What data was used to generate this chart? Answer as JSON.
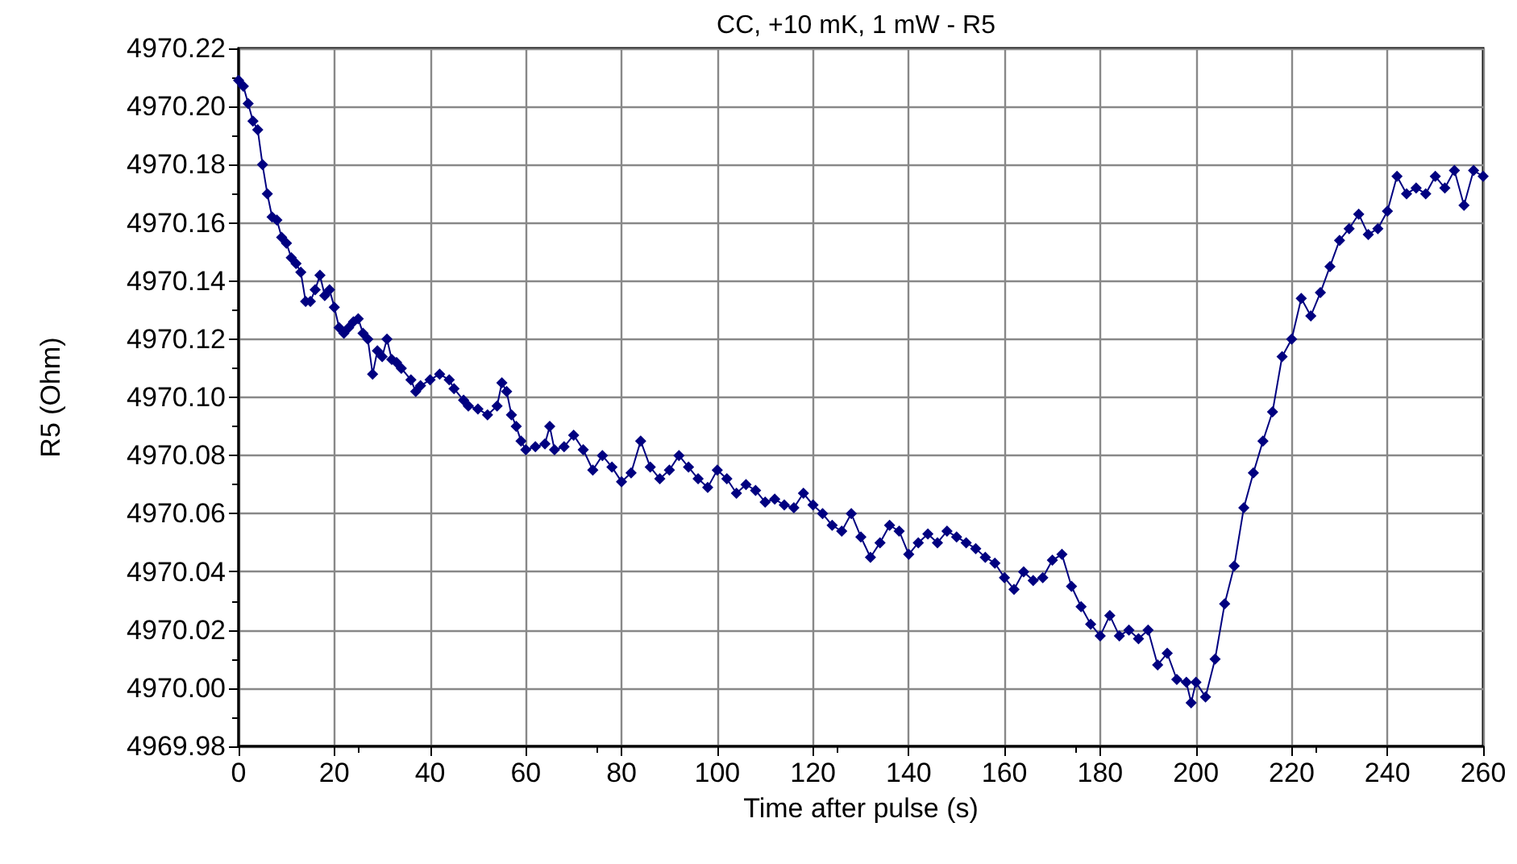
{
  "chart_data": {
    "type": "line",
    "title": "CC, +10 mK, 1 mW - R5",
    "xlabel": "Time after pulse (s)",
    "ylabel": "R5 (Ohm)",
    "x": [
      0,
      1,
      2,
      3,
      4,
      5,
      6,
      7,
      8,
      9,
      10,
      11,
      12,
      13,
      14,
      15,
      16,
      17,
      18,
      19,
      20,
      21,
      22,
      23,
      24,
      25,
      26,
      27,
      28,
      29,
      30,
      31,
      32,
      33,
      34,
      36,
      37,
      38,
      40,
      42,
      44,
      45,
      47,
      48,
      50,
      52,
      54,
      55,
      56,
      57,
      58,
      59,
      60,
      62,
      64,
      65,
      66,
      68,
      70,
      72,
      74,
      76,
      78,
      80,
      82,
      84,
      86,
      88,
      90,
      92,
      94,
      96,
      98,
      100,
      102,
      104,
      106,
      108,
      110,
      112,
      114,
      116,
      118,
      120,
      122,
      124,
      126,
      128,
      130,
      132,
      134,
      136,
      138,
      140,
      142,
      144,
      146,
      148,
      150,
      152,
      154,
      156,
      158,
      160,
      162,
      164,
      166,
      168,
      170,
      172,
      174,
      176,
      178,
      180,
      182,
      184,
      186,
      188,
      190,
      192,
      194,
      196,
      198,
      199,
      200,
      202,
      204,
      206,
      208,
      210,
      212,
      214,
      216,
      218,
      220,
      222,
      224,
      226,
      228,
      230,
      232,
      234,
      236,
      238,
      240,
      242,
      244,
      246,
      248,
      250,
      252,
      254,
      256,
      258,
      260
    ],
    "series": [
      {
        "color": "#000080",
        "values": [
          4970.209,
          4970.207,
          4970.201,
          4970.195,
          4970.192,
          4970.18,
          4970.17,
          4970.162,
          4970.161,
          4970.155,
          4970.153,
          4970.148,
          4970.146,
          4970.143,
          4970.133,
          4970.133,
          4970.137,
          4970.142,
          4970.135,
          4970.137,
          4970.131,
          4970.124,
          4970.122,
          4970.124,
          4970.126,
          4970.127,
          4970.122,
          4970.12,
          4970.108,
          4970.116,
          4970.114,
          4970.12,
          4970.113,
          4970.112,
          4970.11,
          4970.106,
          4970.102,
          4970.104,
          4970.106,
          4970.108,
          4970.106,
          4970.103,
          4970.099,
          4970.097,
          4970.096,
          4970.094,
          4970.097,
          4970.105,
          4970.102,
          4970.094,
          4970.09,
          4970.085,
          4970.082,
          4970.083,
          4970.084,
          4970.09,
          4970.082,
          4970.083,
          4970.087,
          4970.082,
          4970.075,
          4970.08,
          4970.076,
          4970.071,
          4970.074,
          4970.085,
          4970.076,
          4970.072,
          4970.075,
          4970.08,
          4970.076,
          4970.072,
          4970.069,
          4970.075,
          4970.072,
          4970.067,
          4970.07,
          4970.068,
          4970.064,
          4970.065,
          4970.063,
          4970.062,
          4970.067,
          4970.063,
          4970.06,
          4970.056,
          4970.054,
          4970.06,
          4970.052,
          4970.045,
          4970.05,
          4970.056,
          4970.054,
          4970.046,
          4970.05,
          4970.053,
          4970.05,
          4970.054,
          4970.052,
          4970.05,
          4970.048,
          4970.045,
          4970.043,
          4970.038,
          4970.034,
          4970.04,
          4970.037,
          4970.038,
          4970.044,
          4970.046,
          4970.035,
          4970.028,
          4970.022,
          4970.018,
          4970.025,
          4970.018,
          4970.02,
          4970.017,
          4970.02,
          4970.008,
          4970.012,
          4970.003,
          4970.002,
          4969.995,
          4970.002,
          4969.997,
          4970.01,
          4970.029,
          4970.042,
          4970.062,
          4970.074,
          4970.085,
          4970.095,
          4970.114,
          4970.12,
          4970.134,
          4970.128,
          4970.136,
          4970.145,
          4970.154,
          4970.158,
          4970.163,
          4970.156,
          4970.158,
          4970.164,
          4970.176,
          4970.17,
          4970.172,
          4970.17,
          4970.176,
          4970.172,
          4970.178,
          4970.166,
          4970.178,
          4970.176
        ]
      }
    ],
    "xlim": [
      0,
      260
    ],
    "xticks": [
      0,
      20,
      40,
      60,
      80,
      100,
      120,
      140,
      160,
      180,
      200,
      220,
      240,
      260
    ],
    "ylim": [
      4969.98,
      4970.22
    ],
    "yticks": [
      {
        "value": 4969.98,
        "label": "4969.98"
      },
      {
        "value": 4970,
        "label": "4970.00"
      },
      {
        "value": 4970.02,
        "label": "4970.02"
      },
      {
        "value": 4970.04,
        "label": "4970.04"
      },
      {
        "value": 4970.06,
        "label": "4970.06"
      },
      {
        "value": 4970.08,
        "label": "4970.08"
      },
      {
        "value": 4970.1,
        "label": "4970.10"
      },
      {
        "value": 4970.12,
        "label": "4970.12"
      },
      {
        "value": 4970.14,
        "label": "4970.14"
      },
      {
        "value": 4970.16,
        "label": "4970.16"
      },
      {
        "value": 4970.18,
        "label": "4970.18"
      },
      {
        "value": 4970.2,
        "label": "4970.20"
      },
      {
        "value": 4970.22,
        "label": "4970.22"
      }
    ],
    "grid": true,
    "marker": "diamond",
    "line_style": "solid"
  }
}
